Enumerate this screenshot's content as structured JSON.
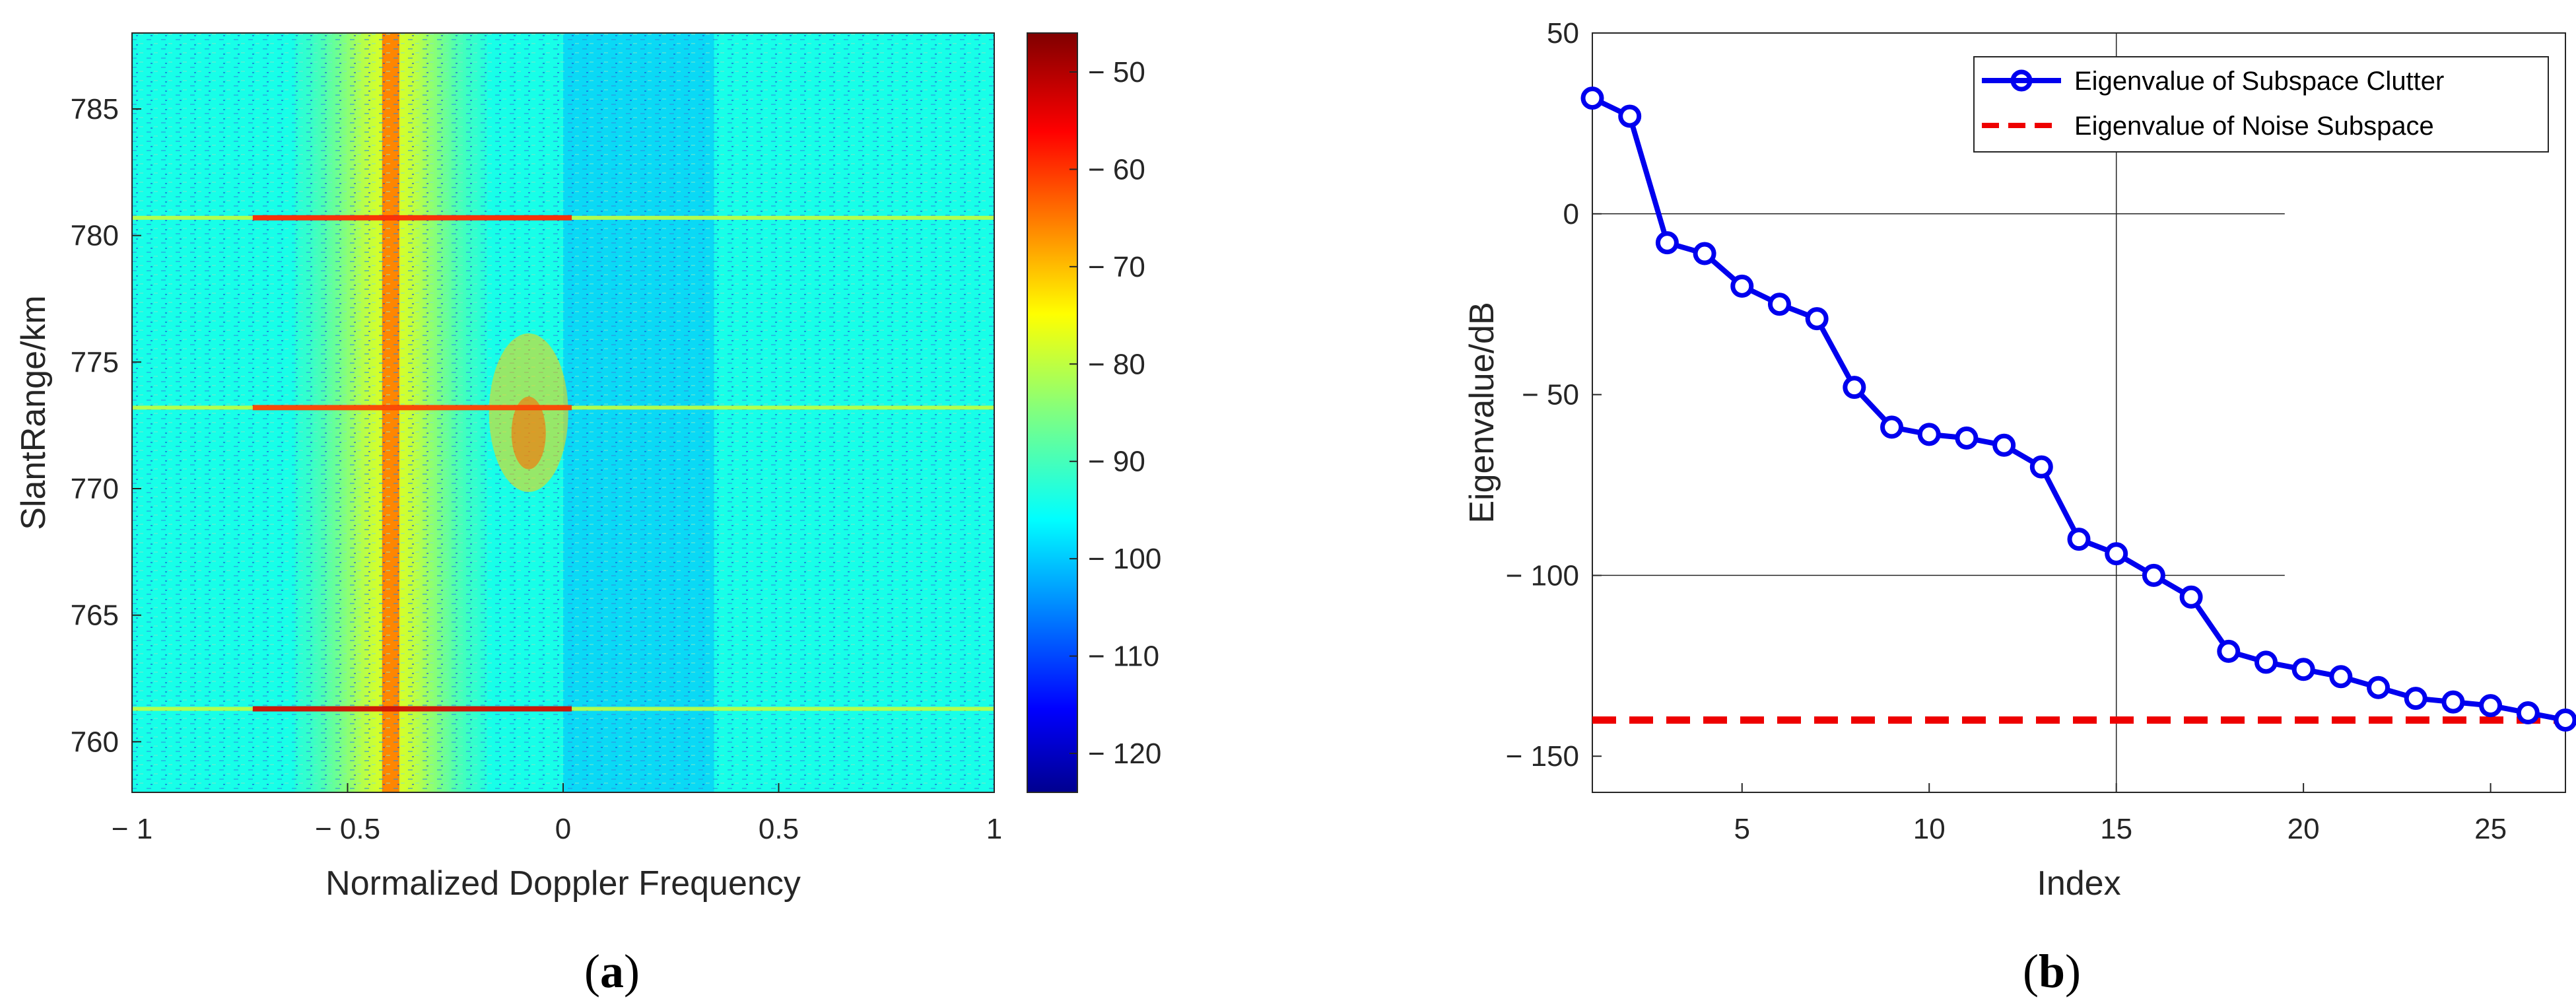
{
  "chart_data": [
    {
      "type": "heatmap",
      "panel_label": "a",
      "xlabel": "Normalized Doppler Frequency",
      "ylabel": "SlantRange/km",
      "xlim": [
        -1,
        1
      ],
      "ylim": [
        758,
        788
      ],
      "xticks": [
        -1,
        -0.5,
        0,
        0.5,
        1
      ],
      "xtick_labels": [
        "− 1",
        "− 0.5",
        "0",
        "0.5",
        "1"
      ],
      "yticks": [
        760,
        765,
        770,
        775,
        780,
        785
      ],
      "ytick_labels": [
        "760",
        "765",
        "770",
        "775",
        "780",
        "785"
      ],
      "colorbar": {
        "range": [
          -124,
          -46
        ],
        "ticks": [
          -50,
          -60,
          -70,
          -80,
          -90,
          -100,
          -110,
          -120
        ],
        "tick_labels": [
          "− 50",
          "− 60",
          "− 70",
          "− 80",
          "− 90",
          "− 100",
          "− 110",
          "− 120"
        ],
        "colormap": "jet"
      },
      "background_level": -93,
      "features": [
        {
          "name": "main-clutter-band",
          "x_center": -0.4,
          "x_halfwidth": 0.22,
          "level": -78
        },
        {
          "name": "main-clutter-ridge",
          "x_center": -0.4,
          "x_halfwidth": 0.02,
          "level": -66
        },
        {
          "name": "low-doppler-region",
          "x_from": 0.0,
          "x_to": 0.35,
          "level": -100
        },
        {
          "name": "target-cluster",
          "x_center": -0.08,
          "y_center": 773,
          "level": -72
        },
        {
          "name": "strong-line",
          "y": 761.3,
          "level": -52
        },
        {
          "name": "line",
          "y": 773.2,
          "level": -60
        },
        {
          "name": "line",
          "y": 780.7,
          "level": -58
        }
      ]
    },
    {
      "type": "line",
      "panel_label": "b",
      "xlabel": "Index",
      "ylabel": "Eigenvalue/dB",
      "xlim": [
        1,
        27
      ],
      "ylim": [
        -160,
        50
      ],
      "xticks": [
        5,
        10,
        15,
        20,
        25
      ],
      "xtick_labels": [
        "5",
        "10",
        "15",
        "20",
        "25"
      ],
      "yticks": [
        50,
        0,
        -50,
        -100,
        -150
      ],
      "ytick_labels": [
        "50",
        "0",
        "− 50",
        "− 100",
        "− 150"
      ],
      "gridlines": {
        "h": [
          0,
          -100
        ],
        "v": [
          15
        ]
      },
      "legend_position": "top-right",
      "series": [
        {
          "name": "Eigenvalue of Subspace Clutter",
          "color": "#0000ee",
          "style": "solid-circle-markers",
          "x": [
            1,
            2,
            3,
            4,
            5,
            6,
            7,
            8,
            9,
            10,
            11,
            12,
            13,
            14,
            15,
            16,
            17,
            18,
            19,
            20,
            21,
            22,
            23,
            24,
            25,
            26,
            27
          ],
          "values": [
            32,
            27,
            -8,
            -11,
            -20,
            -25,
            -29,
            -48,
            -59,
            -61,
            -62,
            -64,
            -70,
            -90,
            -94,
            -100,
            -106,
            -121,
            -124,
            -126,
            -128,
            -131,
            -134,
            -135,
            -136,
            -138,
            -140
          ]
        },
        {
          "name": "Eigenvalue of Noise Subspace",
          "color": "#ee0000",
          "style": "dashed",
          "x": [
            1,
            27
          ],
          "values": [
            -140,
            -140
          ]
        }
      ]
    }
  ]
}
